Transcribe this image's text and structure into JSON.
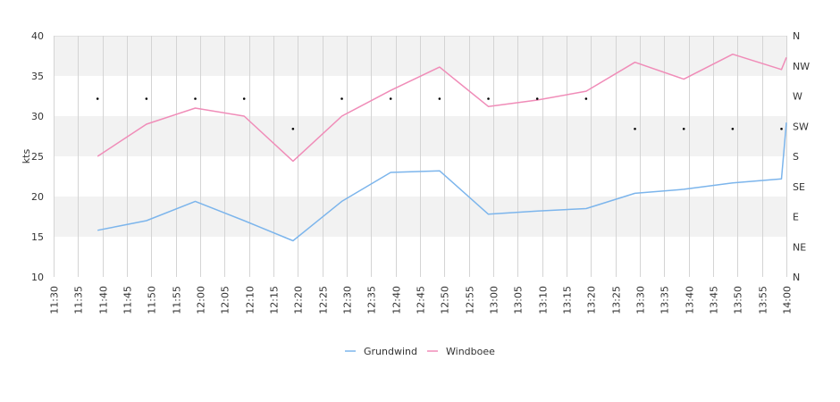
{
  "chart_data": {
    "type": "line",
    "title": "",
    "xlabel": "",
    "ylabel": "kts",
    "ylim": [
      10,
      40
    ],
    "y_ticks": [
      10,
      15,
      20,
      25,
      30,
      35,
      40
    ],
    "y2_ticks": [
      "N",
      "NE",
      "E",
      "SE",
      "S",
      "SW",
      "W",
      "NW",
      "N"
    ],
    "x_ticks": [
      "11:30",
      "11:35",
      "11:40",
      "11:45",
      "11:50",
      "11:55",
      "12:00",
      "12:05",
      "12:10",
      "12:15",
      "12:20",
      "12:25",
      "12:30",
      "12:35",
      "12:40",
      "12:45",
      "12:50",
      "12:55",
      "13:00",
      "13:05",
      "13:10",
      "13:15",
      "13:20",
      "13:25",
      "13:30",
      "13:35",
      "13:40",
      "13:45",
      "13:50",
      "13:55",
      "14:00"
    ],
    "grid": true,
    "legend_position": "bottom-center",
    "series": [
      {
        "name": "Grundwind",
        "color": "#7cb5ec",
        "x": [
          "11:39",
          "11:49",
          "11:59",
          "12:09",
          "12:19",
          "12:29",
          "12:39",
          "12:49",
          "12:59",
          "13:09",
          "13:19",
          "13:29",
          "13:39",
          "13:49",
          "13:59",
          "14:00"
        ],
        "values": [
          15.8,
          17.0,
          19.4,
          17.0,
          14.5,
          19.4,
          23.0,
          23.2,
          17.8,
          18.2,
          18.5,
          20.4,
          20.9,
          21.7,
          22.2,
          29.2
        ]
      },
      {
        "name": "Windboee",
        "color": "#f08cb8",
        "x": [
          "11:39",
          "11:49",
          "11:59",
          "12:09",
          "12:19",
          "12:29",
          "12:39",
          "12:49",
          "12:59",
          "13:09",
          "13:19",
          "13:29",
          "13:39",
          "13:49",
          "13:59",
          "14:00"
        ],
        "values": [
          25.0,
          29.0,
          31.0,
          30.0,
          24.4,
          30.0,
          33.2,
          36.1,
          31.2,
          32.0,
          33.1,
          36.7,
          34.6,
          37.7,
          35.8,
          37.3
        ]
      }
    ],
    "direction_markers": {
      "x": [
        "11:39",
        "11:49",
        "11:59",
        "12:09",
        "12:19",
        "12:29",
        "12:39",
        "12:49",
        "12:59",
        "13:09",
        "13:19",
        "13:29",
        "13:39",
        "13:49",
        "13:59"
      ],
      "values": [
        "W",
        "W",
        "W",
        "W",
        "SW",
        "W",
        "W",
        "W",
        "W",
        "W",
        "W",
        "SW",
        "SW",
        "SW",
        "SW"
      ]
    }
  }
}
